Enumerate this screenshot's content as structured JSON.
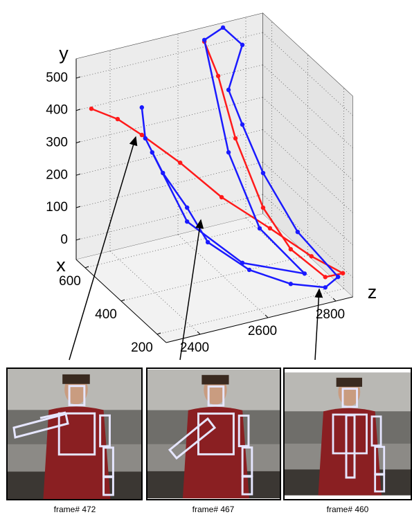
{
  "chart_data": {
    "type": "line3d",
    "x_label": "x",
    "y_label": "y",
    "z_label": "z",
    "xlim": [
      150,
      650
    ],
    "ylim": [
      -60,
      560
    ],
    "zlim": [
      2300,
      2850
    ],
    "xticks": [
      200,
      400,
      600
    ],
    "yticks": [
      0,
      100,
      200,
      300,
      400,
      500
    ],
    "zticks": [
      2400,
      2600,
      2800
    ],
    "grid": true,
    "series": [
      {
        "color": "#ff1a1a",
        "x": [
          624,
          578,
          536,
          470,
          398,
          314,
          242,
          188,
          218,
          278,
          326,
          374,
          404,
          428
        ],
        "y": [
          411,
          389,
          349,
          277,
          186,
          108,
          37,
          -4,
          -22,
          51,
          169,
          373,
          559,
          660
        ],
        "z": [
          2331,
          2384,
          2433,
          2511,
          2595,
          2693,
          2777,
          2841,
          2805,
          2735,
          2679,
          2623,
          2588,
          2560
        ]
      },
      {
        "color": "#1a1aff",
        "x": [
          536,
          530,
          500,
          458,
          422,
          350,
          278,
          218,
          196,
          266,
          326,
          362,
          386,
          362,
          396,
          428,
          386,
          332,
          254,
          362,
          458,
          518
        ],
        "y": [
          434,
          340,
          239,
          141,
          42,
          -28,
          -56,
          -54,
          -17,
          107,
          276,
          418,
          520,
          664,
          710,
          665,
          327,
          104,
          -19,
          -9,
          98,
          299
        ],
        "z": [
          2433,
          2440,
          2476,
          2525,
          2567,
          2651,
          2735,
          2805,
          2831,
          2749,
          2679,
          2637,
          2609,
          2637,
          2598,
          2560,
          2609,
          2672,
          2763,
          2637,
          2525,
          2454
        ]
      }
    ]
  },
  "frames": [
    "frame# 472",
    "frame# 467",
    "frame# 460"
  ]
}
